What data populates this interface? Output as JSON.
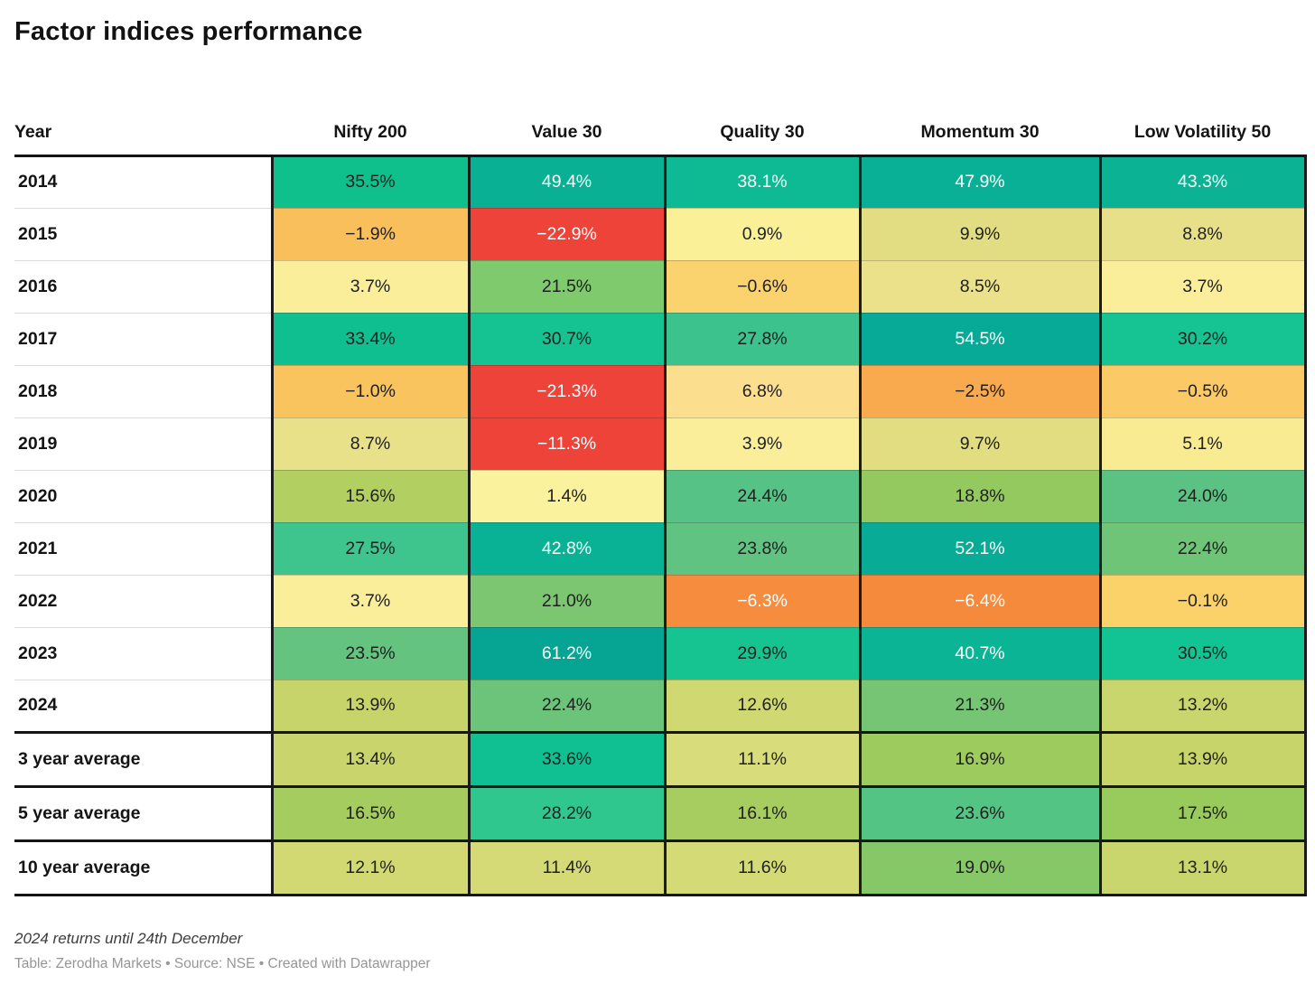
{
  "title": "Factor indices performance",
  "footnote": "2024 returns until 24th December",
  "credit": "Table: Zerodha Markets • Source: NSE • Created with Datawrapper",
  "accent_colors": {
    "strong_positive_teal": "#07ab96",
    "positive_green": "#5cc283",
    "neutral_yellow": "#faf098",
    "negative_orange": "#f9aa4e",
    "strong_negative_red": "#ee4339",
    "grid_black": "#1a1a19",
    "year_separator_gray": "#dcdcdc"
  },
  "table": {
    "columns": [
      "Year",
      "Nifty 200",
      "Value 30",
      "Quality 30",
      "Momentum 30",
      "Low Volatility 50"
    ],
    "rows": [
      {
        "label": "2014",
        "avg": false,
        "cells": [
          {
            "v": "35.5%",
            "bg": "#0fc08d",
            "light": false
          },
          {
            "v": "49.4%",
            "bg": "#09b093",
            "light": true
          },
          {
            "v": "38.1%",
            "bg": "#0dba93",
            "light": true
          },
          {
            "v": "47.9%",
            "bg": "#0ab095",
            "light": true
          },
          {
            "v": "43.3%",
            "bg": "#0bb294",
            "light": true
          }
        ]
      },
      {
        "label": "2015",
        "avg": false,
        "cells": [
          {
            "v": "−1.9%",
            "bg": "#f9bf5a",
            "light": false
          },
          {
            "v": "−22.9%",
            "bg": "#ee4339",
            "light": true
          },
          {
            "v": "0.9%",
            "bg": "#faf098",
            "light": false
          },
          {
            "v": "9.9%",
            "bg": "#e2dd82",
            "light": false
          },
          {
            "v": "8.8%",
            "bg": "#e8e089",
            "light": false
          }
        ]
      },
      {
        "label": "2016",
        "avg": false,
        "cells": [
          {
            "v": "3.7%",
            "bg": "#fbee9a",
            "light": false
          },
          {
            "v": "21.5%",
            "bg": "#80ca6e",
            "light": false
          },
          {
            "v": "−0.6%",
            "bg": "#fbd36e",
            "light": false
          },
          {
            "v": "8.5%",
            "bg": "#ebe18a",
            "light": false
          },
          {
            "v": "3.7%",
            "bg": "#fbee9a",
            "light": false
          }
        ]
      },
      {
        "label": "2017",
        "avg": false,
        "cells": [
          {
            "v": "33.4%",
            "bg": "#10bf8f",
            "light": false
          },
          {
            "v": "30.7%",
            "bg": "#14c391",
            "light": false
          },
          {
            "v": "27.8%",
            "bg": "#3cc38d",
            "light": false
          },
          {
            "v": "54.5%",
            "bg": "#07a997",
            "light": true
          },
          {
            "v": "30.2%",
            "bg": "#15c492",
            "light": false
          }
        ]
      },
      {
        "label": "2018",
        "avg": false,
        "cells": [
          {
            "v": "−1.0%",
            "bg": "#f9c35e",
            "light": false
          },
          {
            "v": "−21.3%",
            "bg": "#ee4339",
            "light": true
          },
          {
            "v": "6.8%",
            "bg": "#fbdf8e",
            "light": false
          },
          {
            "v": "−2.5%",
            "bg": "#f9aa4e",
            "light": false
          },
          {
            "v": "−0.5%",
            "bg": "#fbca66",
            "light": false
          }
        ]
      },
      {
        "label": "2019",
        "avg": false,
        "cells": [
          {
            "v": "8.7%",
            "bg": "#e9e189",
            "light": false
          },
          {
            "v": "−11.3%",
            "bg": "#ee4339",
            "light": true
          },
          {
            "v": "3.9%",
            "bg": "#faee9a",
            "light": false
          },
          {
            "v": "9.7%",
            "bg": "#e1dd80",
            "light": false
          },
          {
            "v": "5.1%",
            "bg": "#f8eb91",
            "light": false
          }
        ]
      },
      {
        "label": "2020",
        "avg": false,
        "cells": [
          {
            "v": "15.6%",
            "bg": "#b2cf62",
            "light": false
          },
          {
            "v": "1.4%",
            "bg": "#faf29c",
            "light": false
          },
          {
            "v": "24.4%",
            "bg": "#57c286",
            "light": false
          },
          {
            "v": "18.8%",
            "bg": "#93c95f",
            "light": false
          },
          {
            "v": "24.0%",
            "bg": "#5cc283",
            "light": false
          }
        ]
      },
      {
        "label": "2021",
        "avg": false,
        "cells": [
          {
            "v": "27.5%",
            "bg": "#3ec48d",
            "light": false
          },
          {
            "v": "42.8%",
            "bg": "#0ab295",
            "light": true
          },
          {
            "v": "23.8%",
            "bg": "#60c381",
            "light": false
          },
          {
            "v": "52.1%",
            "bg": "#08ab96",
            "light": true
          },
          {
            "v": "22.4%",
            "bg": "#6ec477",
            "light": false
          }
        ]
      },
      {
        "label": "2022",
        "avg": false,
        "cells": [
          {
            "v": "3.7%",
            "bg": "#fbee9a",
            "light": false
          },
          {
            "v": "21.0%",
            "bg": "#7cc571",
            "light": false
          },
          {
            "v": "−6.3%",
            "bg": "#f68d3e",
            "light": true
          },
          {
            "v": "−6.4%",
            "bg": "#f68a3c",
            "light": true
          },
          {
            "v": "−0.1%",
            "bg": "#fbd26a",
            "light": false
          }
        ]
      },
      {
        "label": "2023",
        "avg": false,
        "cells": [
          {
            "v": "23.5%",
            "bg": "#63c37f",
            "light": false
          },
          {
            "v": "61.2%",
            "bg": "#06a593",
            "light": true
          },
          {
            "v": "29.9%",
            "bg": "#16c491",
            "light": false
          },
          {
            "v": "40.7%",
            "bg": "#0bb495",
            "light": true
          },
          {
            "v": "30.5%",
            "bg": "#12c493",
            "light": false
          }
        ]
      },
      {
        "label": "2024",
        "avg": false,
        "cells": [
          {
            "v": "13.9%",
            "bg": "#c6d46a",
            "light": false
          },
          {
            "v": "22.4%",
            "bg": "#6cc47a",
            "light": false
          },
          {
            "v": "12.6%",
            "bg": "#cfd871",
            "light": false
          },
          {
            "v": "21.3%",
            "bg": "#76c574",
            "light": false
          },
          {
            "v": "13.2%",
            "bg": "#c9d66d",
            "light": false
          }
        ]
      },
      {
        "label": "3 year average",
        "avg": true,
        "cells": [
          {
            "v": "13.4%",
            "bg": "#c9d56c",
            "light": false
          },
          {
            "v": "33.6%",
            "bg": "#10bf92",
            "light": false
          },
          {
            "v": "11.1%",
            "bg": "#d9dc7a",
            "light": false
          },
          {
            "v": "16.9%",
            "bg": "#9ecb5d",
            "light": false
          },
          {
            "v": "13.9%",
            "bg": "#c6d46a",
            "light": false
          }
        ]
      },
      {
        "label": "5 year average",
        "avg": true,
        "cells": [
          {
            "v": "16.5%",
            "bg": "#a4cc5e",
            "light": false
          },
          {
            "v": "28.2%",
            "bg": "#2fc78e",
            "light": false
          },
          {
            "v": "16.1%",
            "bg": "#a7cd60",
            "light": false
          },
          {
            "v": "23.6%",
            "bg": "#54c485",
            "light": false
          },
          {
            "v": "17.5%",
            "bg": "#99ca5c",
            "light": false
          }
        ]
      },
      {
        "label": "10 year average",
        "avg": true,
        "cells": [
          {
            "v": "12.1%",
            "bg": "#d2d973",
            "light": false
          },
          {
            "v": "11.4%",
            "bg": "#d5da76",
            "light": false
          },
          {
            "v": "11.6%",
            "bg": "#d4da75",
            "light": false
          },
          {
            "v": "19.0%",
            "bg": "#86c767",
            "light": false
          },
          {
            "v": "13.1%",
            "bg": "#c9d66d",
            "light": false
          }
        ]
      }
    ]
  },
  "chart_data": {
    "type": "heatmap",
    "title": "Factor indices performance",
    "unit": "%",
    "categories": [
      "2014",
      "2015",
      "2016",
      "2017",
      "2018",
      "2019",
      "2020",
      "2021",
      "2022",
      "2023",
      "2024",
      "3 year average",
      "5 year average",
      "10 year average"
    ],
    "series": [
      {
        "name": "Nifty 200",
        "values": [
          35.5,
          -1.9,
          3.7,
          33.4,
          -1.0,
          8.7,
          15.6,
          27.5,
          3.7,
          23.5,
          13.9,
          13.4,
          16.5,
          12.1
        ]
      },
      {
        "name": "Value 30",
        "values": [
          49.4,
          -22.9,
          21.5,
          30.7,
          -21.3,
          -11.3,
          1.4,
          42.8,
          21.0,
          61.2,
          22.4,
          33.6,
          28.2,
          11.4
        ]
      },
      {
        "name": "Quality 30",
        "values": [
          38.1,
          0.9,
          -0.6,
          27.8,
          6.8,
          3.9,
          24.4,
          23.8,
          -6.3,
          29.9,
          12.6,
          11.1,
          16.1,
          11.6
        ]
      },
      {
        "name": "Momentum 30",
        "values": [
          47.9,
          9.9,
          8.5,
          54.5,
          -2.5,
          9.7,
          18.8,
          52.1,
          -6.4,
          40.7,
          21.3,
          16.9,
          23.6,
          19.0
        ]
      },
      {
        "name": "Low Volatility 50",
        "values": [
          43.3,
          8.8,
          3.7,
          30.2,
          -0.5,
          5.1,
          24.0,
          22.4,
          -0.1,
          30.5,
          13.2,
          13.9,
          17.5,
          13.1
        ]
      }
    ],
    "value_range": [
      -22.9,
      61.2
    ],
    "color_scale": "red (negative) → orange → pale yellow (≈0) → khaki → yellow-green → green → teal (high positive)",
    "legend_position": "none",
    "grid": "black cell borders between columns, thick rules around average rows"
  }
}
